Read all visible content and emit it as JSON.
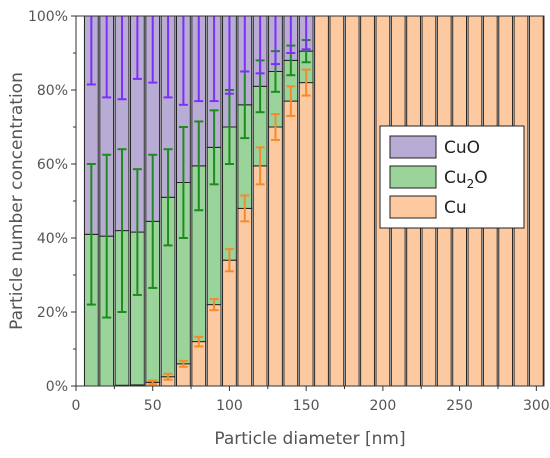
{
  "chart_data": {
    "type": "bar",
    "stacked": true,
    "xlabel": "Particle diameter [nm]",
    "ylabel": "Particle number concentration",
    "xlim": [
      0,
      305
    ],
    "ylim": [
      0,
      100
    ],
    "x_ticks": [
      0,
      50,
      100,
      150,
      200,
      250,
      300
    ],
    "y_ticks": [
      "0%",
      "20%",
      "40%",
      "60%",
      "80%",
      "100%"
    ],
    "y_tick_values": [
      0,
      20,
      40,
      60,
      80,
      100
    ],
    "bar_width": 9,
    "x": [
      10,
      20,
      30,
      40,
      50,
      60,
      70,
      80,
      90,
      100,
      110,
      120,
      130,
      140,
      150,
      160,
      170,
      180,
      190,
      200,
      210,
      220,
      230,
      240,
      250,
      260,
      270,
      280,
      290,
      300
    ],
    "series": [
      {
        "name": "Cu",
        "color": "#fdc9a1",
        "error_color": "#f58a2a",
        "values": [
          0,
          0,
          0.2,
          0.3,
          1.0,
          2.5,
          6.0,
          12.0,
          22.0,
          34.0,
          48.0,
          59.5,
          70.0,
          77.0,
          82.0,
          100,
          100,
          100,
          100,
          100,
          100,
          100,
          100,
          100,
          100,
          100,
          100,
          100,
          100,
          100
        ],
        "errors": [
          0,
          0,
          0,
          0,
          0.5,
          0.8,
          0.8,
          1.3,
          1.5,
          3.0,
          3.5,
          5.0,
          3.5,
          4.0,
          3.5,
          0,
          0,
          0,
          0,
          0,
          0,
          0,
          0,
          0,
          0,
          0,
          0,
          0,
          0,
          0
        ]
      },
      {
        "name": "Cu2O",
        "color": "#9ad49a",
        "error_color": "#1f8a1f",
        "values": [
          41.0,
          40.5,
          41.8,
          41.3,
          43.5,
          48.5,
          49.0,
          47.5,
          42.5,
          36.0,
          28.0,
          21.5,
          15.0,
          11.0,
          8.5,
          0,
          0,
          0,
          0,
          0,
          0,
          0,
          0,
          0,
          0,
          0,
          0,
          0,
          0,
          0
        ],
        "errors": [
          19.0,
          22.0,
          22.0,
          17.0,
          18.0,
          13.0,
          15.0,
          12.0,
          10.0,
          10.0,
          9.0,
          7.0,
          5.5,
          4.0,
          3.0,
          0,
          0,
          0,
          0,
          0,
          0,
          0,
          0,
          0,
          0,
          0,
          0,
          0,
          0,
          0
        ]
      },
      {
        "name": "CuO",
        "color": "#b8acd4",
        "error_color": "#7b2ff7",
        "values": [
          59.0,
          59.5,
          58.0,
          58.4,
          55.5,
          49.0,
          45.0,
          40.5,
          35.5,
          30.0,
          24.0,
          19.0,
          15.0,
          12.0,
          9.5,
          0,
          0,
          0,
          0,
          0,
          0,
          0,
          0,
          0,
          0,
          0,
          0,
          0,
          0,
          0
        ],
        "errors": [
          18.5,
          22.0,
          22.5,
          17.0,
          18.0,
          22.0,
          24.0,
          23.0,
          23.0,
          21.0,
          15.0,
          15.5,
          13.0,
          10.0,
          9.0,
          0,
          0,
          0,
          0,
          0,
          0,
          0,
          0,
          0,
          0,
          0,
          0,
          0,
          0,
          0
        ]
      }
    ],
    "legend": {
      "placement": "right",
      "entries": [
        {
          "label": "CuO",
          "sub": "",
          "suffix": "",
          "color": "#b8acd4"
        },
        {
          "label": "Cu",
          "sub": "2",
          "suffix": "O",
          "color": "#9ad49a"
        },
        {
          "label": "Cu",
          "sub": "",
          "suffix": "",
          "color": "#fdc9a1"
        }
      ]
    }
  }
}
